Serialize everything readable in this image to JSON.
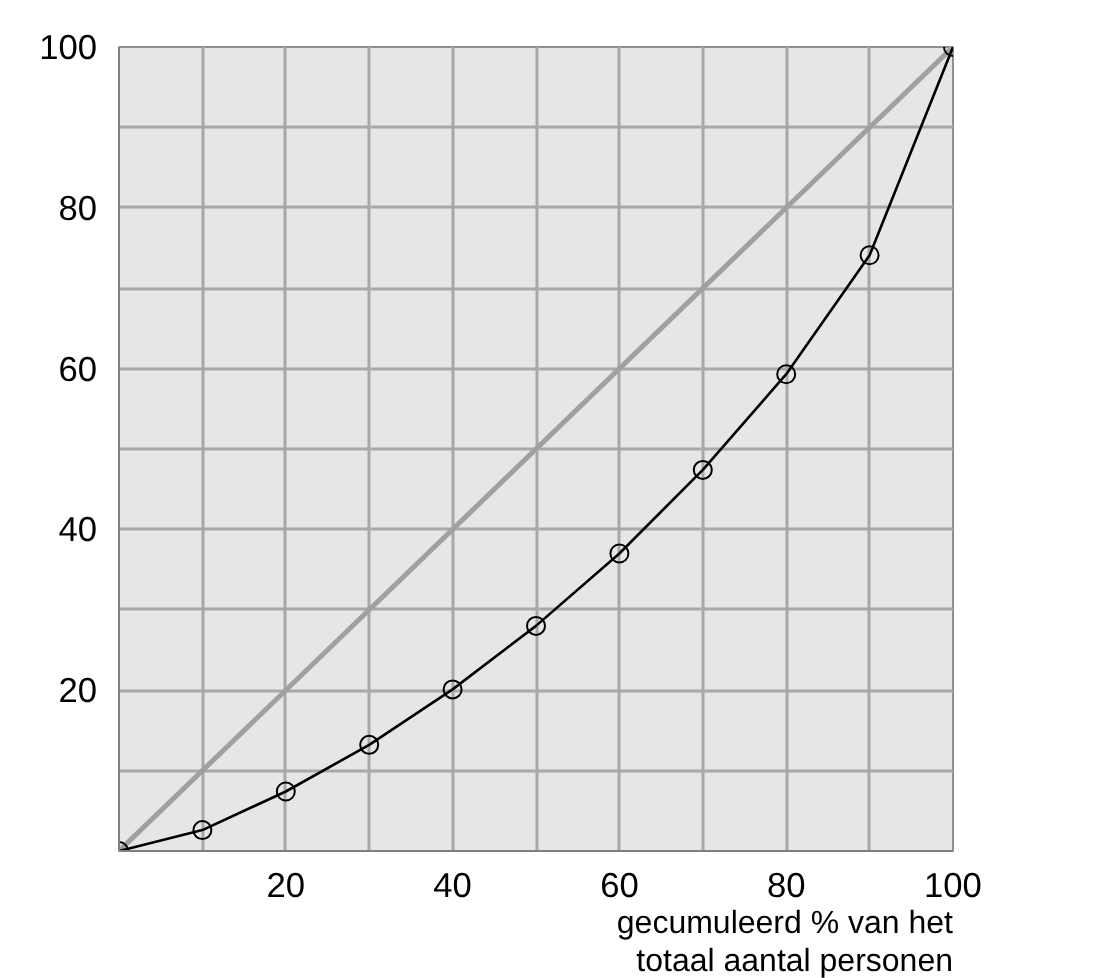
{
  "chart_data": {
    "type": "line",
    "xlabel": "gecumuleerd % van het\ntotaal aantal personen",
    "xlim": [
      0,
      100
    ],
    "ylim": [
      0,
      100
    ],
    "xticks": [
      {
        "value": 10,
        "label": null
      },
      20,
      {
        "value": 30,
        "label": null
      },
      40,
      {
        "value": 50,
        "label": null
      },
      60,
      {
        "value": 70,
        "label": null
      },
      80,
      {
        "value": 90,
        "label": null
      },
      100
    ],
    "yticks": [
      {
        "value": 10,
        "label": null
      },
      20,
      {
        "value": 30,
        "label": null
      },
      40,
      {
        "value": 50,
        "label": null
      },
      60,
      {
        "value": 70,
        "label": null
      },
      80,
      {
        "value": 90,
        "label": null
      },
      100
    ],
    "grid": true,
    "series": [
      {
        "x": [
          0,
          100
        ],
        "values": [
          0,
          100
        ],
        "color": "#a0a0a0",
        "marker": "none"
      },
      {
        "x": [
          0,
          10,
          20,
          30,
          40,
          50,
          60,
          70,
          80,
          90,
          100
        ],
        "values": [
          0,
          2.6,
          7.4,
          13.2,
          20.1,
          28.0,
          37.0,
          47.4,
          59.3,
          74.1,
          100
        ],
        "color": "#000000",
        "marker": "circle"
      }
    ]
  }
}
